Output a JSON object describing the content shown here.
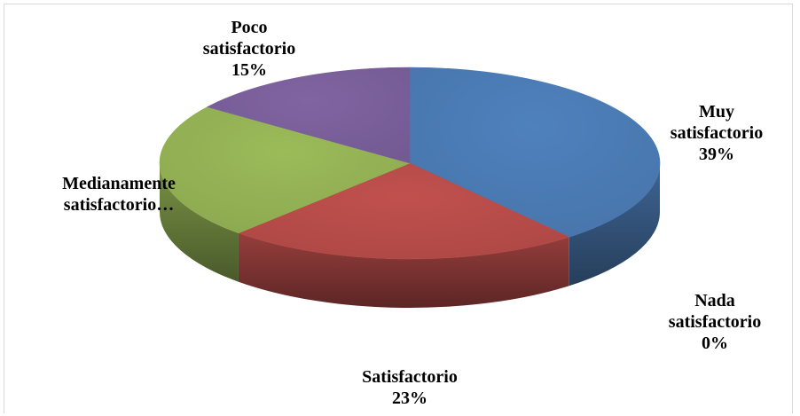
{
  "chart_data": {
    "type": "pie",
    "style": "3d",
    "slices": [
      {
        "label_lines": [
          "Muy",
          "satisfactorio"
        ],
        "pct_label": "39%",
        "value": 39,
        "color": "#4f81bd"
      },
      {
        "label_lines": [
          "Nada",
          "satisfactorio"
        ],
        "pct_label": "0%",
        "value": 0,
        "color": "#1f3b5c"
      },
      {
        "label_lines": [
          "Satisfactorio"
        ],
        "pct_label": "23%",
        "value": 23,
        "color": "#c0504d"
      },
      {
        "label_lines": [
          "Medianamente",
          "satisfactorio…"
        ],
        "pct_label": "",
        "value": 23,
        "color": "#9bbb59"
      },
      {
        "label_lines": [
          "Poco",
          "satisfactorio"
        ],
        "pct_label": "15%",
        "value": 15,
        "color": "#8064a2"
      }
    ]
  }
}
